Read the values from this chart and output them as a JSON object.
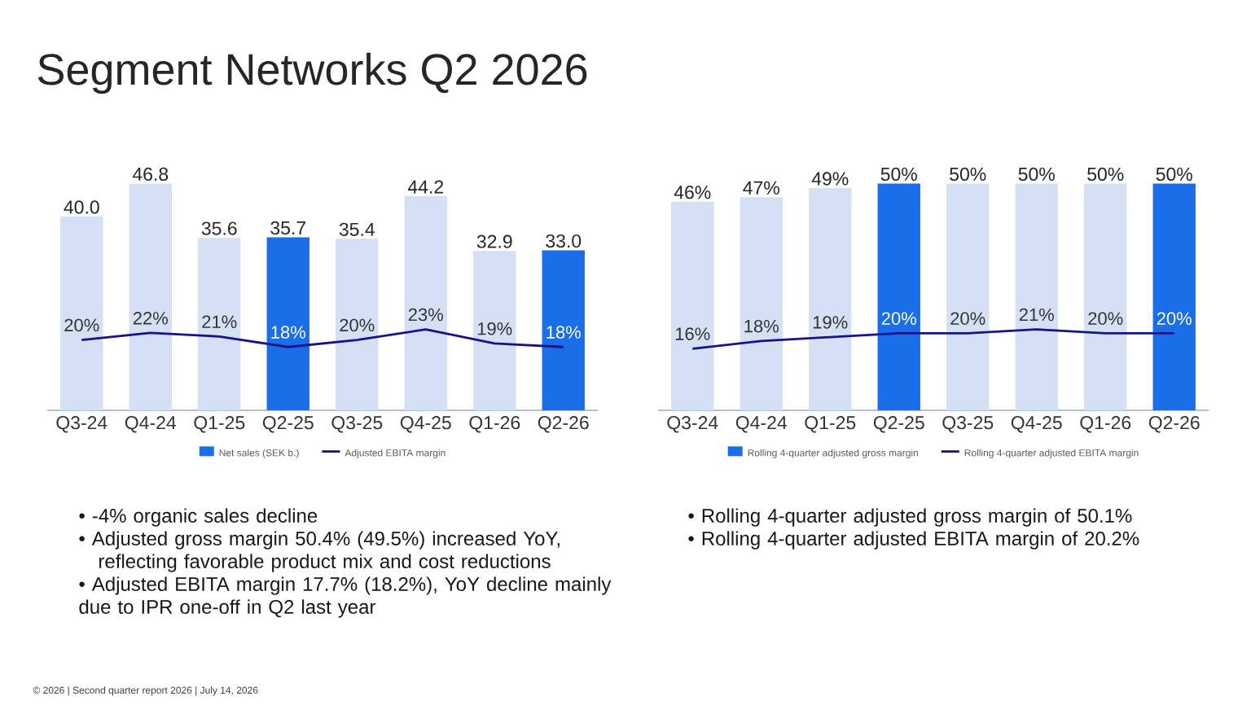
{
  "chart_data": [
    {
      "type": "bar",
      "title": "Segment Networks Q2 2026",
      "categories": [
        "Q3-24",
        "Q4-24",
        "Q1-25",
        "Q2-25",
        "Q3-25",
        "Q4-25",
        "Q1-26",
        "Q2-26"
      ],
      "series": [
        {
          "name": "Net sales (SEK b.)",
          "type": "bar",
          "color": "#1a6ee8",
          "colors": [
            "#d6e0f5",
            "#d6e0f5",
            "#d6e0f5",
            "#1a6ee8",
            "#d6e0f5",
            "#d6e0f5",
            "#d6e0f5",
            "#1a6ee8"
          ],
          "values": [
            40.0,
            46.8,
            35.6,
            35.7,
            35.4,
            44.2,
            32.9,
            33.0
          ],
          "value_labels": [
            "40.0",
            "46.8",
            "35.6",
            "35.7",
            "35.4",
            "44.2",
            "32.9",
            "33.0"
          ]
        },
        {
          "name": "Adjusted EBITA margin",
          "type": "line",
          "axis": "y2",
          "color": "#14148c",
          "values": [
            20,
            22,
            21,
            18,
            20,
            23,
            19,
            18
          ],
          "value_labels": [
            "20%",
            "22%",
            "21%",
            "18%",
            "20%",
            "23%",
            "19%",
            "18%"
          ]
        }
      ],
      "tick_labels": "x",
      "legend": "bottom",
      "annotations": [
        "• -4% organic sales decline",
        "• Adjusted gross margin 50.4% (49.5%) increased YoY, reflecting favorable product mix and cost reductions",
        "• Adjusted EBITA margin 17.7% (18.2%), YoY decline mainly due to IPR one-off in Q2 last year"
      ]
    },
    {
      "type": "bar",
      "categories": [
        "Q3-24",
        "Q4-24",
        "Q1-25",
        "Q2-25",
        "Q3-25",
        "Q4-25",
        "Q1-26",
        "Q2-26"
      ],
      "series": [
        {
          "name": "Rolling 4-quarter adjusted gross margin",
          "type": "bar",
          "color": "#1a6ee8",
          "colors": [
            "#d6e0f5",
            "#d6e0f5",
            "#d6e0f5",
            "#1a6ee8",
            "#d6e0f5",
            "#d6e0f5",
            "#d6e0f5",
            "#1a6ee8"
          ],
          "values": [
            46,
            47,
            49,
            50,
            50,
            50,
            50,
            50
          ],
          "value_labels": [
            "46%",
            "47%",
            "49%",
            "50%",
            "50%",
            "50%",
            "50%",
            "50%"
          ]
        },
        {
          "name": "Rolling 4-quarter adjusted EBITA margin",
          "type": "line",
          "axis": "y2",
          "color": "#14148c",
          "values": [
            16,
            18,
            19,
            20,
            20,
            21,
            20,
            20
          ],
          "value_labels": [
            "16%",
            "18%",
            "19%",
            "20%",
            "20%",
            "21%",
            "20%",
            "20%"
          ]
        }
      ],
      "tick_labels": "x",
      "legend": "bottom",
      "annotations": [
        "• Rolling 4-quarter adjusted gross margin of 50.1%",
        "• Rolling 4-quarter adjusted EBITA margin of 20.2%"
      ]
    },
    {
      "type": "other",
      "annotations": [
        "© 2026 | Second quarter report 2026 | July 14, 2026"
      ]
    }
  ]
}
